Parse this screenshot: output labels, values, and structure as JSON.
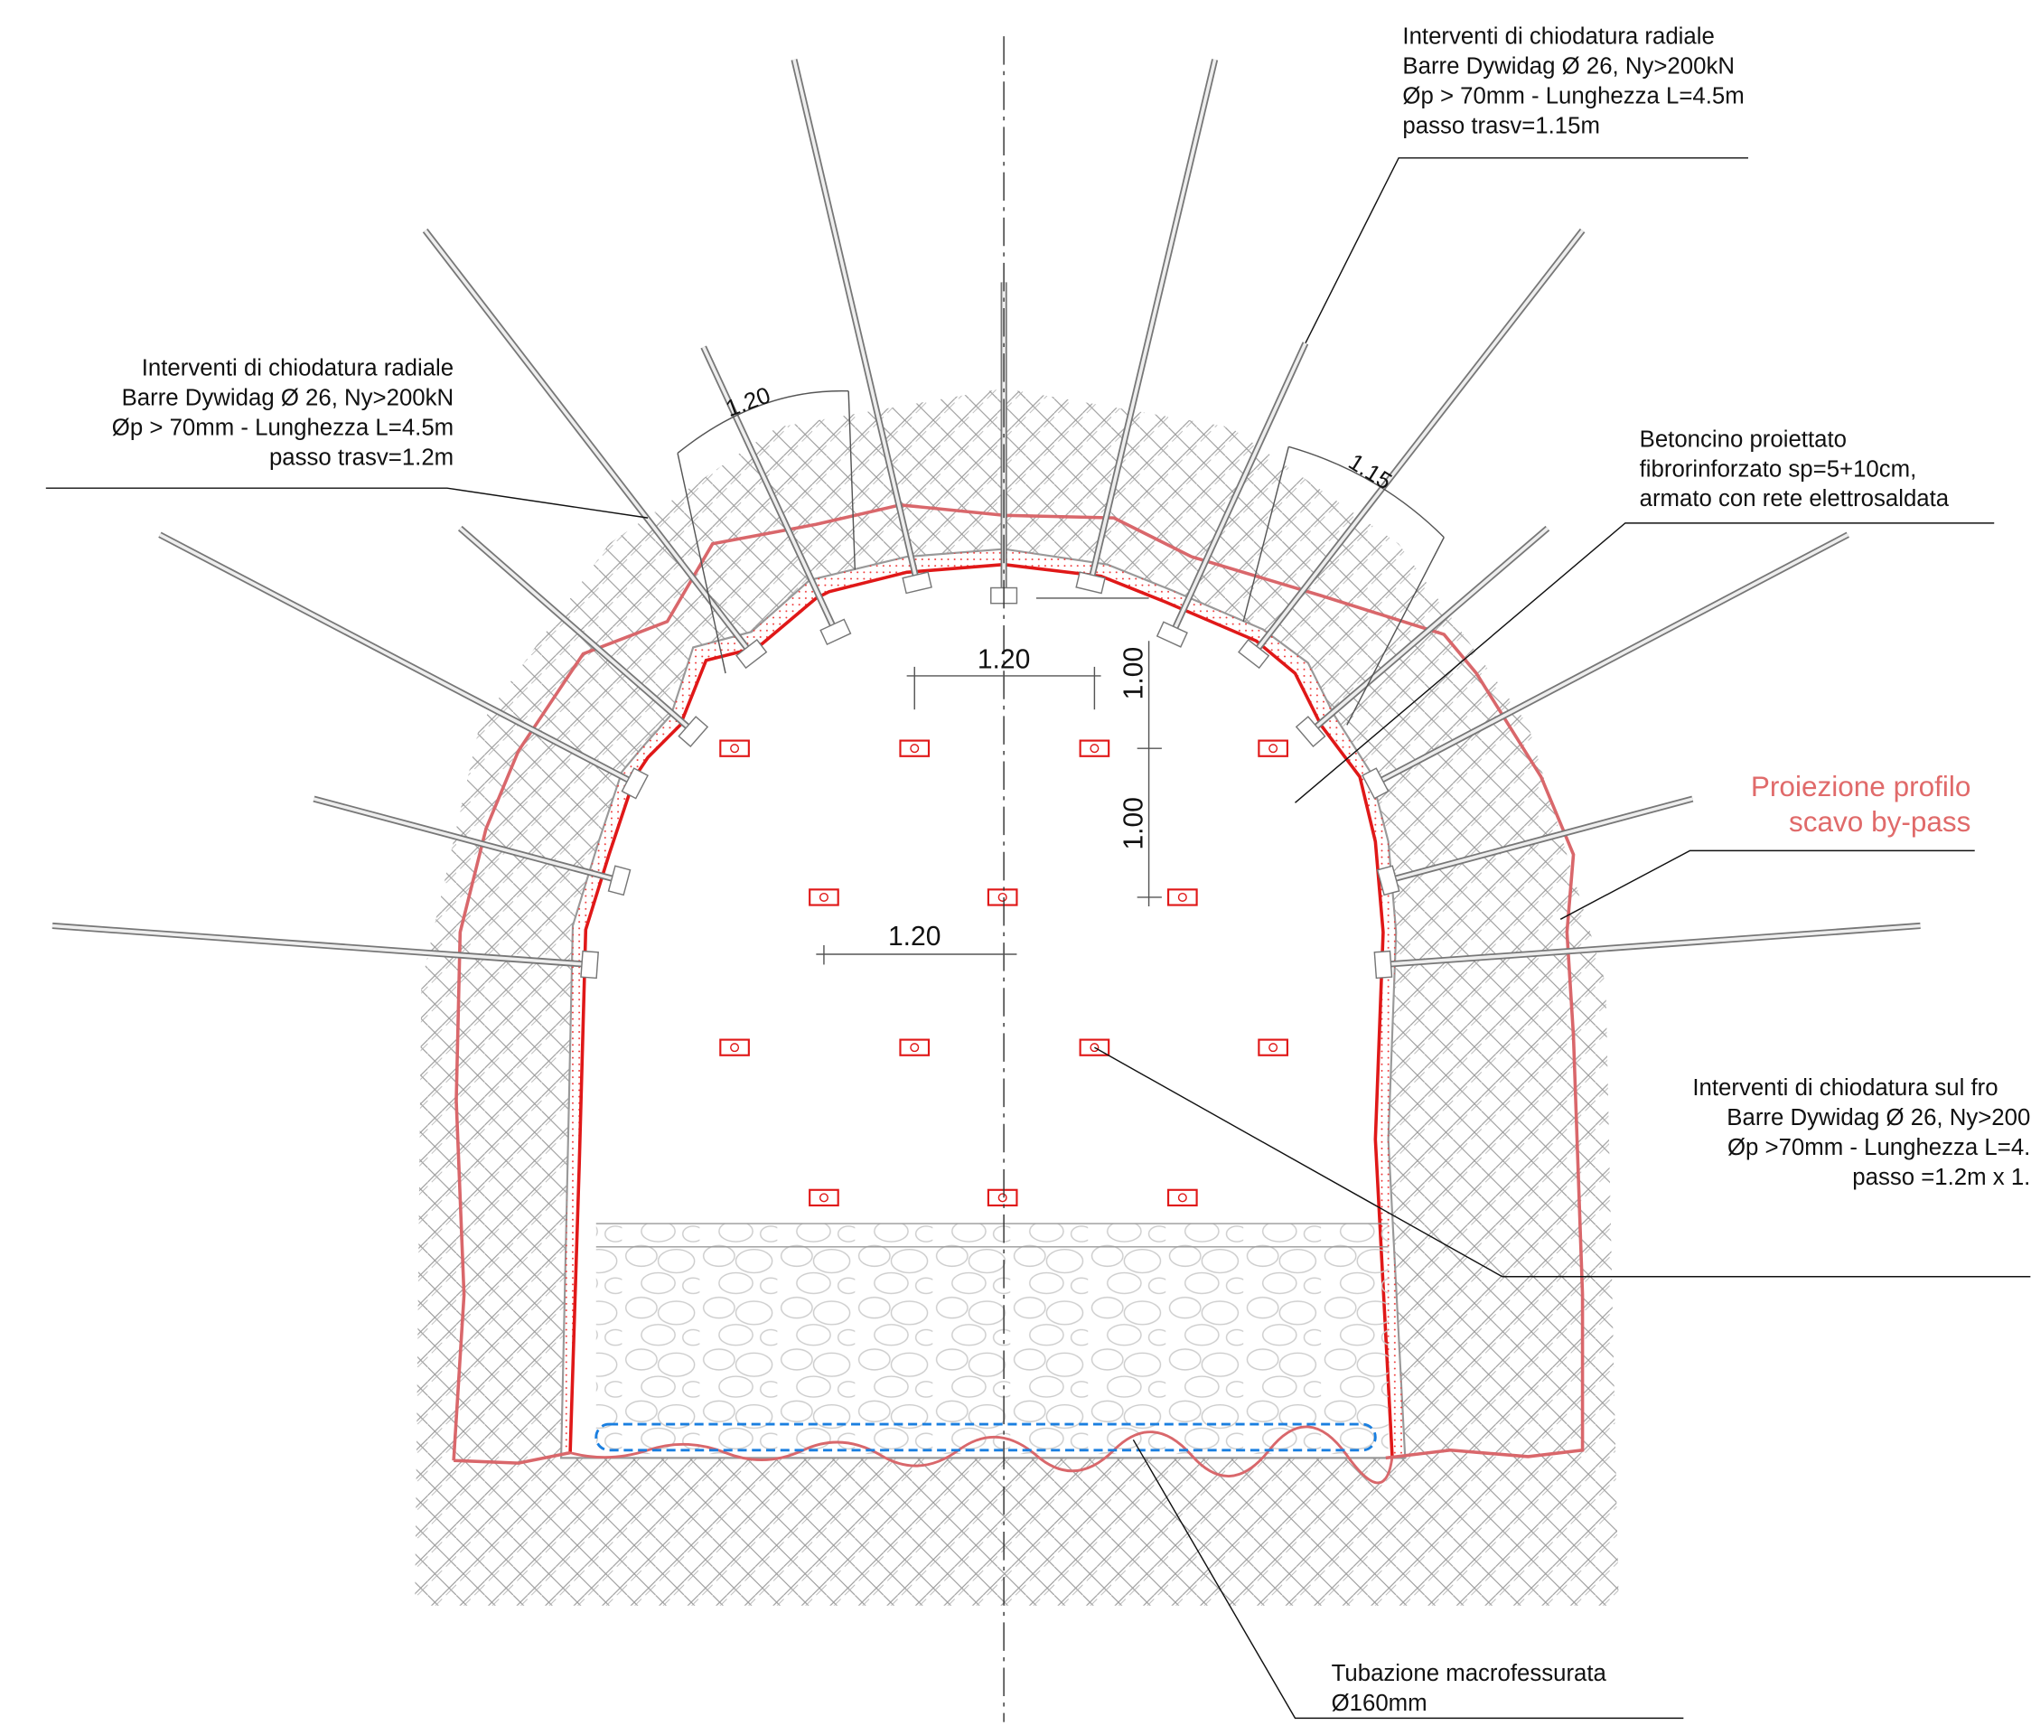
{
  "callouts": {
    "radial_right": {
      "lines": [
        "Interventi di chiodatura radiale",
        "Barre Dywidag Ø 26, Ny>200kN",
        "Øp > 70mm - Lunghezza L=4.5m",
        "passo trasv=1.15m"
      ]
    },
    "radial_left": {
      "lines": [
        "Interventi di chiodatura radiale",
        "Barre Dywidag Ø 26, Ny>200kN",
        "Øp > 70mm - Lunghezza L=4.5m",
        "passo trasv=1.2m"
      ]
    },
    "shotcrete": {
      "lines": [
        "Betoncino proiettato",
        "fibrorinforzato sp=5+10cm,",
        "armato con rete elettrosaldata"
      ]
    },
    "projection": {
      "lines": [
        "Proiezione profilo",
        "scavo by-pass"
      ]
    },
    "face_nails": {
      "lines": [
        "Interventi di chiodatura sul fro",
        "Barre Dywidag Ø 26, Ny>200",
        "Øp >70mm - Lunghezza L=4.",
        "passo =1.2m x 1."
      ]
    },
    "pipe": {
      "lines": [
        "Tubazione macrofessurata",
        "Ø160mm"
      ]
    }
  },
  "dimensions": {
    "arc_left": "1.20",
    "arc_right": "1.15",
    "horizontal_top": "1.20",
    "vertical_top": "1.00",
    "vertical_bottom": "1.00",
    "horizontal_bottom": "1.20"
  }
}
